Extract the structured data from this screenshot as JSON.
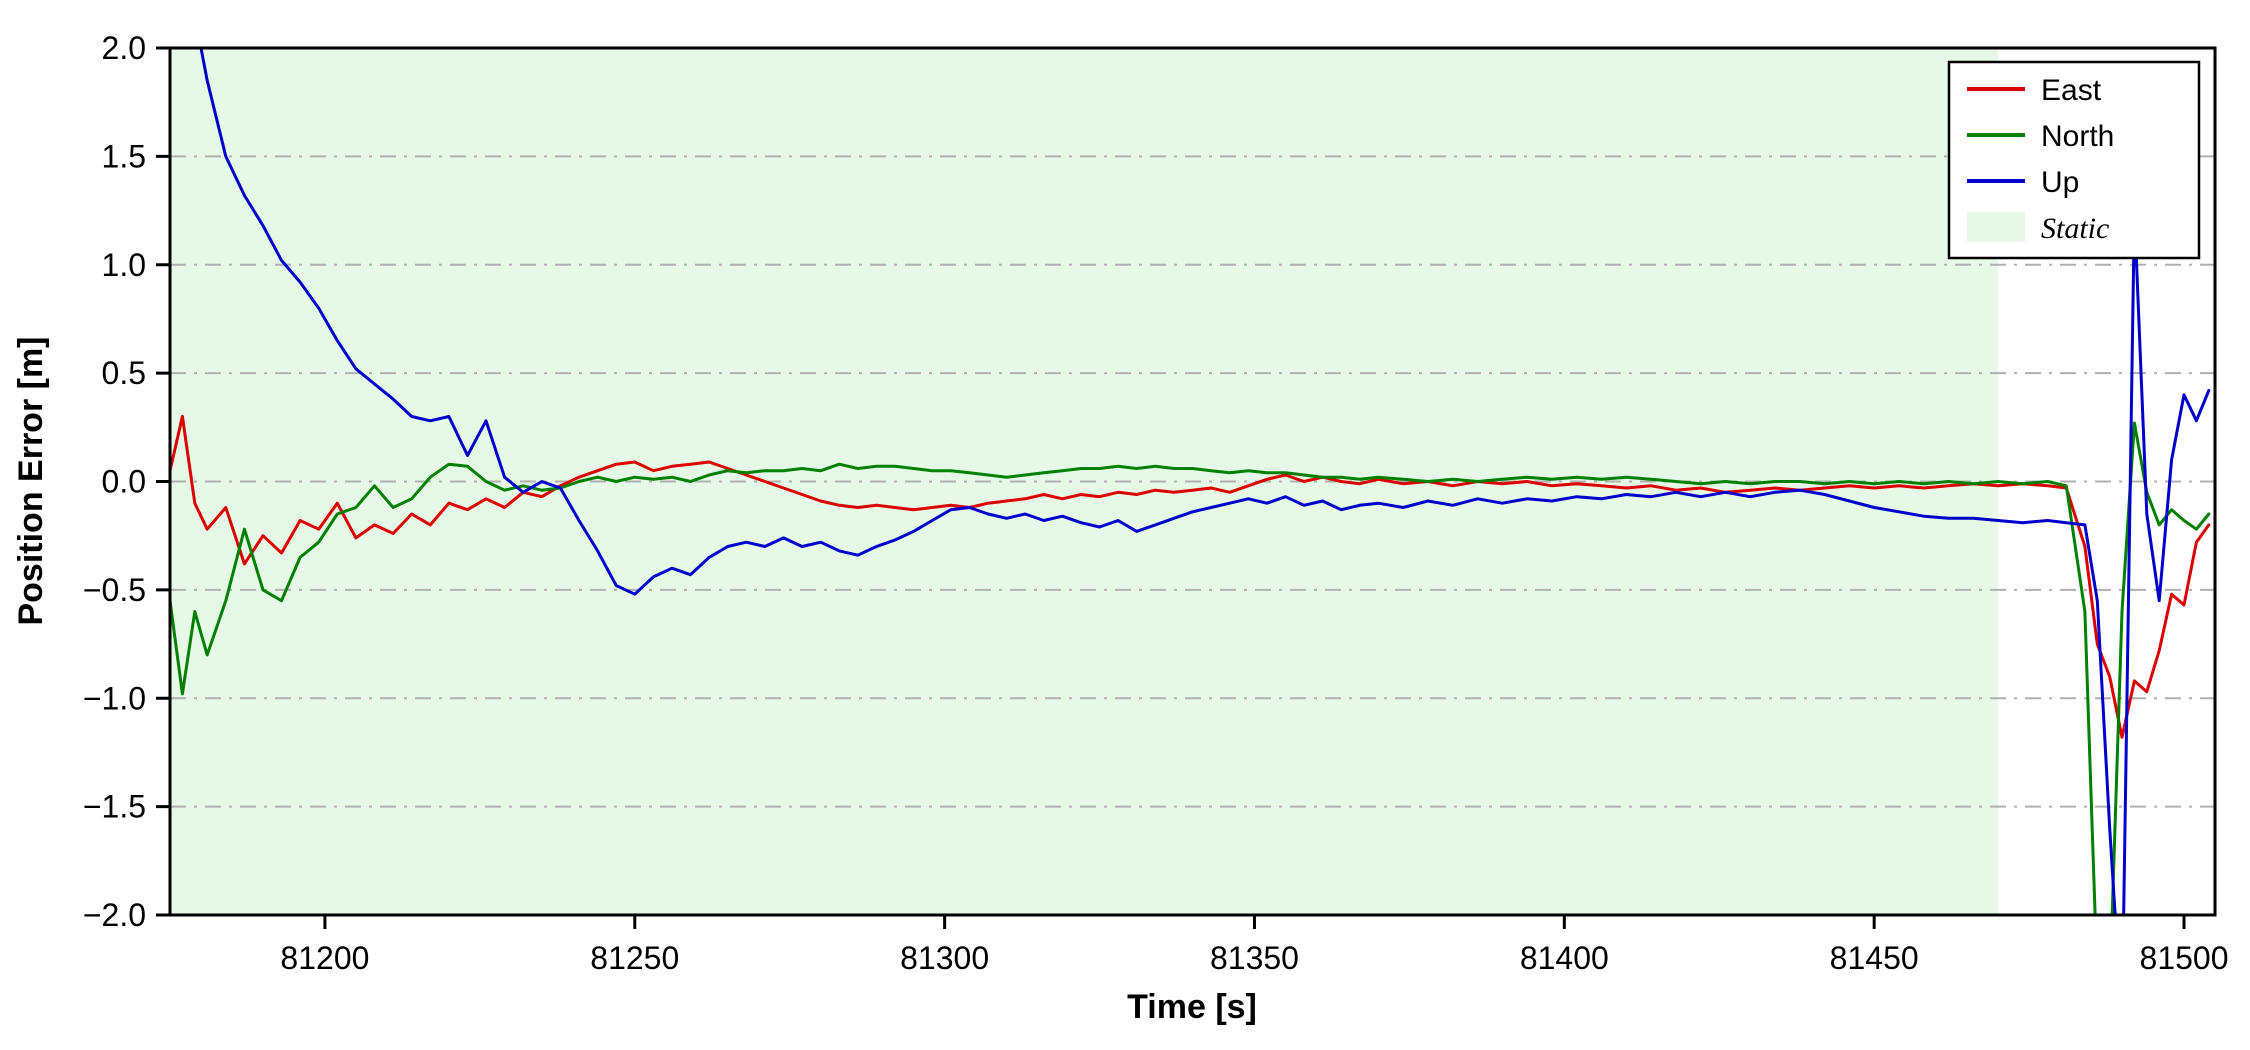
{
  "chart_data": {
    "type": "line",
    "title": "",
    "xlabel": "Time [s]",
    "ylabel": "Position Error [m]",
    "xlim": [
      81175,
      81505
    ],
    "ylim": [
      -2.0,
      2.0
    ],
    "xticks": [
      81200,
      81250,
      81300,
      81350,
      81400,
      81450,
      81500
    ],
    "yticks": [
      -2.0,
      -1.5,
      -1.0,
      -0.5,
      0.0,
      0.5,
      1.0,
      1.5,
      2.0
    ],
    "grid": {
      "axis": "y",
      "style": "dash-dot",
      "color": "#b0b0b0"
    },
    "frame_color": "#000000",
    "legend": {
      "position": "upper right",
      "entries": [
        "East",
        "North",
        "Up",
        "Static"
      ]
    },
    "regions": [
      {
        "label": "Static",
        "x0": 81175,
        "x1": 81470,
        "color": "#e6f8e6",
        "label_style": "italic"
      }
    ],
    "x": [
      81175,
      81177,
      81179,
      81181,
      81184,
      81187,
      81190,
      81193,
      81196,
      81199,
      81202,
      81205,
      81208,
      81211,
      81214,
      81217,
      81220,
      81223,
      81226,
      81229,
      81232,
      81235,
      81238,
      81241,
      81244,
      81247,
      81250,
      81253,
      81256,
      81259,
      81262,
      81265,
      81268,
      81271,
      81274,
      81277,
      81280,
      81283,
      81286,
      81289,
      81292,
      81295,
      81298,
      81301,
      81304,
      81307,
      81310,
      81313,
      81316,
      81319,
      81322,
      81325,
      81328,
      81331,
      81334,
      81337,
      81340,
      81343,
      81346,
      81349,
      81352,
      81355,
      81358,
      81361,
      81364,
      81367,
      81370,
      81374,
      81378,
      81382,
      81386,
      81390,
      81394,
      81398,
      81402,
      81406,
      81410,
      81414,
      81418,
      81422,
      81426,
      81430,
      81434,
      81438,
      81442,
      81446,
      81450,
      81454,
      81458,
      81462,
      81466,
      81470,
      81474,
      81478,
      81481,
      81484,
      81486,
      81488,
      81490,
      81492,
      81494,
      81496,
      81498,
      81500,
      81502,
      81504
    ],
    "series": [
      {
        "name": "East",
        "color": "#dd0000",
        "y": [
          0.05,
          0.3,
          -0.1,
          -0.22,
          -0.12,
          -0.38,
          -0.25,
          -0.33,
          -0.18,
          -0.22,
          -0.1,
          -0.26,
          -0.2,
          -0.24,
          -0.15,
          -0.2,
          -0.1,
          -0.13,
          -0.08,
          -0.12,
          -0.05,
          -0.07,
          -0.02,
          0.02,
          0.05,
          0.08,
          0.09,
          0.05,
          0.07,
          0.08,
          0.09,
          0.06,
          0.03,
          0.0,
          -0.03,
          -0.06,
          -0.09,
          -0.11,
          -0.12,
          -0.11,
          -0.12,
          -0.13,
          -0.12,
          -0.11,
          -0.12,
          -0.1,
          -0.09,
          -0.08,
          -0.06,
          -0.08,
          -0.06,
          -0.07,
          -0.05,
          -0.06,
          -0.04,
          -0.05,
          -0.04,
          -0.03,
          -0.05,
          -0.02,
          0.01,
          0.03,
          0.0,
          0.02,
          0.0,
          -0.01,
          0.01,
          -0.01,
          0.0,
          -0.02,
          0.0,
          -0.01,
          0.0,
          -0.02,
          -0.01,
          -0.02,
          -0.03,
          -0.02,
          -0.04,
          -0.03,
          -0.05,
          -0.04,
          -0.03,
          -0.04,
          -0.03,
          -0.02,
          -0.03,
          -0.02,
          -0.03,
          -0.02,
          -0.01,
          -0.02,
          -0.01,
          -0.02,
          -0.03,
          -0.3,
          -0.75,
          -0.9,
          -1.18,
          -0.92,
          -0.97,
          -0.78,
          -0.52,
          -0.57,
          -0.28,
          -0.2
        ]
      },
      {
        "name": "North",
        "color": "#008000",
        "y": [
          -0.55,
          -0.98,
          -0.6,
          -0.8,
          -0.55,
          -0.22,
          -0.5,
          -0.55,
          -0.35,
          -0.28,
          -0.15,
          -0.12,
          -0.02,
          -0.12,
          -0.08,
          0.02,
          0.08,
          0.07,
          0.0,
          -0.04,
          -0.02,
          -0.04,
          -0.03,
          0.0,
          0.02,
          0.0,
          0.02,
          0.01,
          0.02,
          0.0,
          0.03,
          0.05,
          0.04,
          0.05,
          0.05,
          0.06,
          0.05,
          0.08,
          0.06,
          0.07,
          0.07,
          0.06,
          0.05,
          0.05,
          0.04,
          0.03,
          0.02,
          0.03,
          0.04,
          0.05,
          0.06,
          0.06,
          0.07,
          0.06,
          0.07,
          0.06,
          0.06,
          0.05,
          0.04,
          0.05,
          0.04,
          0.04,
          0.03,
          0.02,
          0.02,
          0.01,
          0.02,
          0.01,
          0.0,
          0.01,
          0.0,
          0.01,
          0.02,
          0.01,
          0.02,
          0.01,
          0.02,
          0.01,
          0.0,
          -0.01,
          0.0,
          -0.01,
          0.0,
          0.0,
          -0.01,
          0.0,
          -0.01,
          0.0,
          -0.01,
          0.0,
          -0.01,
          0.0,
          -0.01,
          0.0,
          -0.02,
          -0.6,
          -2.3,
          -2.35,
          -0.6,
          0.27,
          -0.05,
          -0.2,
          -0.13,
          -0.18,
          -0.22,
          -0.15
        ]
      },
      {
        "name": "Up",
        "color": "#0000cc",
        "y": [
          3.4,
          2.6,
          2.15,
          1.85,
          1.5,
          1.32,
          1.18,
          1.02,
          0.92,
          0.8,
          0.65,
          0.52,
          0.45,
          0.38,
          0.3,
          0.28,
          0.3,
          0.12,
          0.28,
          0.02,
          -0.05,
          0.0,
          -0.03,
          -0.18,
          -0.32,
          -0.48,
          -0.52,
          -0.44,
          -0.4,
          -0.43,
          -0.35,
          -0.3,
          -0.28,
          -0.3,
          -0.26,
          -0.3,
          -0.28,
          -0.32,
          -0.34,
          -0.3,
          -0.27,
          -0.23,
          -0.18,
          -0.13,
          -0.12,
          -0.15,
          -0.17,
          -0.15,
          -0.18,
          -0.16,
          -0.19,
          -0.21,
          -0.18,
          -0.23,
          -0.2,
          -0.17,
          -0.14,
          -0.12,
          -0.1,
          -0.08,
          -0.1,
          -0.07,
          -0.11,
          -0.09,
          -0.13,
          -0.11,
          -0.1,
          -0.12,
          -0.09,
          -0.11,
          -0.08,
          -0.1,
          -0.08,
          -0.09,
          -0.07,
          -0.08,
          -0.06,
          -0.07,
          -0.05,
          -0.07,
          -0.05,
          -0.07,
          -0.05,
          -0.04,
          -0.06,
          -0.09,
          -0.12,
          -0.14,
          -0.16,
          -0.17,
          -0.17,
          -0.18,
          -0.19,
          -0.18,
          -0.19,
          -0.2,
          -0.55,
          -1.6,
          -2.5,
          1.25,
          -0.15,
          -0.55,
          0.1,
          0.4,
          0.28,
          0.42
        ]
      }
    ]
  }
}
